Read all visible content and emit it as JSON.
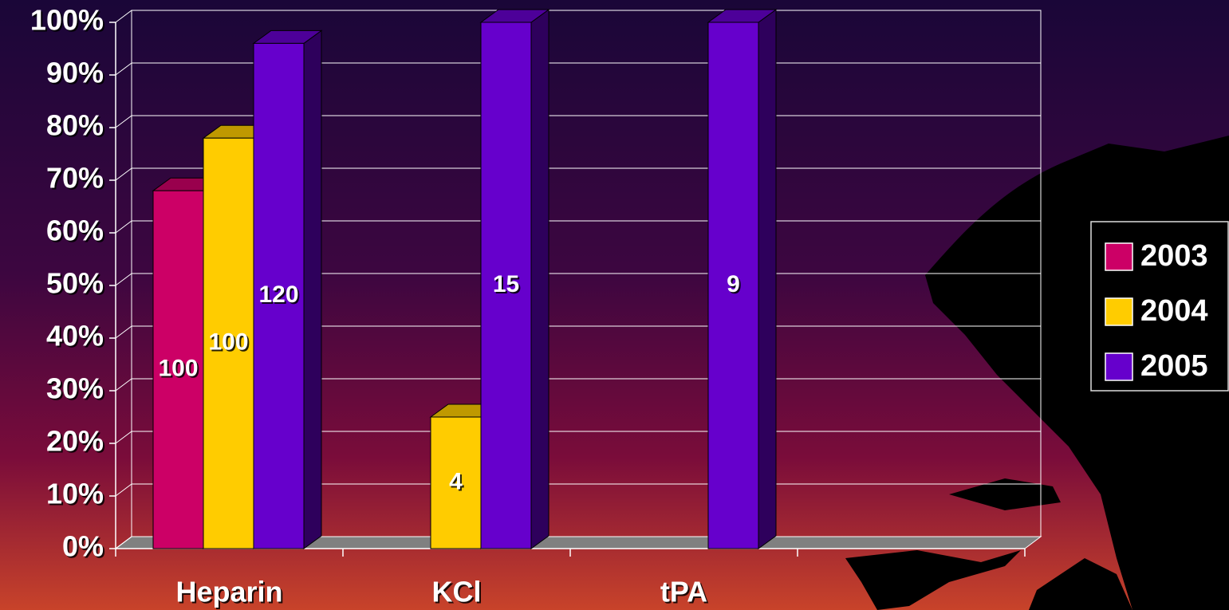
{
  "chart_data": {
    "type": "bar3d",
    "categories": [
      "Heparin",
      "KCl",
      "tPA",
      null
    ],
    "series": [
      {
        "name": "2003",
        "color": "#cc0066",
        "values": [
          68,
          0,
          0,
          null
        ],
        "data_labels": [
          "100",
          null,
          null,
          null
        ]
      },
      {
        "name": "2004",
        "color": "#ffcc00",
        "values": [
          78,
          25,
          0,
          null
        ],
        "data_labels": [
          "100",
          "4",
          null,
          null
        ]
      },
      {
        "name": "2005",
        "color": "#6600cc",
        "values": [
          96,
          100,
          100,
          null
        ],
        "data_labels": [
          "120",
          "15",
          "9",
          null
        ]
      }
    ],
    "ylim": [
      0,
      100
    ],
    "yticks": [
      {
        "value": 0,
        "label": "0%"
      },
      {
        "value": 10,
        "label": "10%"
      },
      {
        "value": 20,
        "label": "20%"
      },
      {
        "value": 30,
        "label": "30%"
      },
      {
        "value": 40,
        "label": "40%"
      },
      {
        "value": 50,
        "label": "50%"
      },
      {
        "value": 60,
        "label": "60%"
      },
      {
        "value": 70,
        "label": "70%"
      },
      {
        "value": 80,
        "label": "80%"
      },
      {
        "value": 90,
        "label": "90%"
      },
      {
        "value": 100,
        "label": "100%"
      }
    ],
    "grid": true,
    "legend": "right"
  }
}
